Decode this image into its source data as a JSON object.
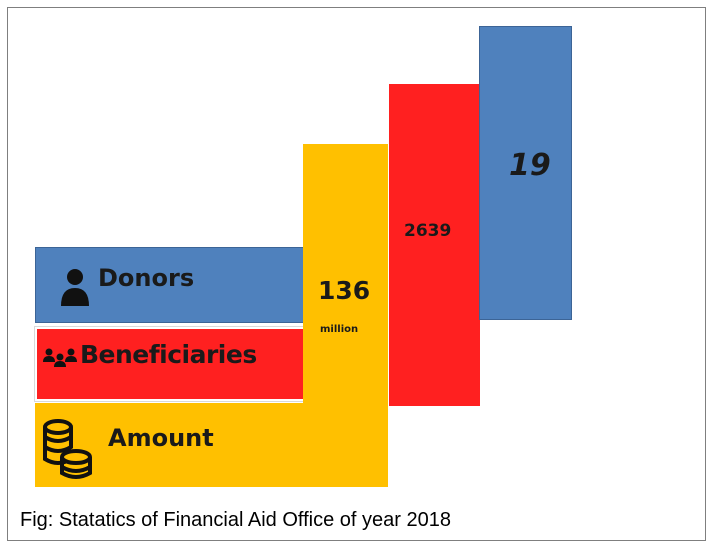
{
  "chart_data": {
    "type": "bar",
    "categories": [
      "Donors",
      "Beneficiaries",
      "Amount"
    ],
    "values": [
      19,
      2639,
      136
    ],
    "value_labels": [
      "19",
      "2639",
      "136"
    ],
    "units": [
      "",
      "",
      "million"
    ],
    "colors": [
      "#4f81bd",
      "#ff2020",
      "#ffc000"
    ],
    "icons": [
      "person-icon",
      "group-icon",
      "coins-icon"
    ],
    "legend_placement": "left"
  },
  "caption": "Fig: Statatics of Financial Aid Office of year 2018"
}
